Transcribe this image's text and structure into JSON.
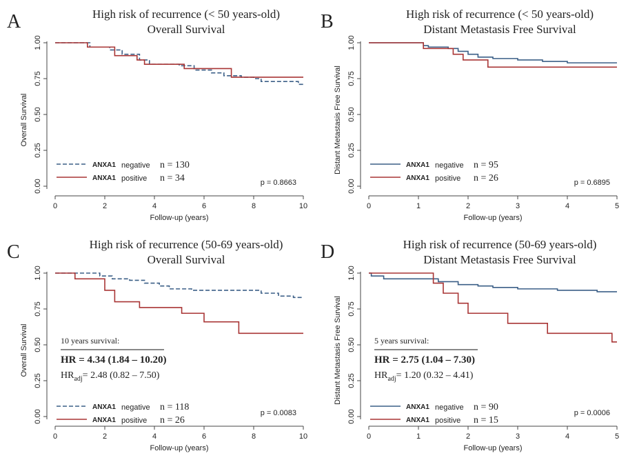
{
  "colors": {
    "negative": "#3a5e86",
    "positive": "#a83434",
    "axis": "#444444",
    "text": "#222222"
  },
  "chart_data": [
    {
      "panel": "A",
      "type": "line",
      "title": "High risk of recurrence (< 50 years-old)",
      "subtitle": "Overall Survival",
      "xlabel": "Follow-up (years)",
      "ylabel": "Overall Survival",
      "xlim": [
        0,
        10
      ],
      "ylim": [
        0,
        1
      ],
      "xticks": [
        "0",
        "2",
        "4",
        "6",
        "8",
        "10"
      ],
      "yticks": [
        "0.00",
        "0.25",
        "0.50",
        "0.75",
        "1.00"
      ],
      "pvalue": "p = 0.8663",
      "summary": null,
      "series": [
        {
          "name": "ANXA1",
          "group": "negative",
          "n_label": "n = 130",
          "style": "dashed",
          "steps": [
            [
              0,
              1.0
            ],
            [
              1.4,
              0.97
            ],
            [
              2.2,
              0.95
            ],
            [
              2.7,
              0.92
            ],
            [
              3.4,
              0.88
            ],
            [
              3.8,
              0.85
            ],
            [
              5.0,
              0.84
            ],
            [
              5.6,
              0.81
            ],
            [
              6.3,
              0.79
            ],
            [
              6.8,
              0.77
            ],
            [
              7.5,
              0.76
            ],
            [
              8.0,
              0.75
            ],
            [
              8.3,
              0.73
            ],
            [
              9.8,
              0.71
            ],
            [
              10.0,
              0.71
            ]
          ]
        },
        {
          "name": "ANXA1",
          "group": "positive",
          "n_label": "n = 34",
          "style": "solid",
          "steps": [
            [
              0,
              1.0
            ],
            [
              1.3,
              0.97
            ],
            [
              2.4,
              0.91
            ],
            [
              3.3,
              0.88
            ],
            [
              3.6,
              0.85
            ],
            [
              5.2,
              0.82
            ],
            [
              7.1,
              0.76
            ],
            [
              10.0,
              0.76
            ]
          ]
        }
      ]
    },
    {
      "panel": "B",
      "type": "line",
      "title": "High risk of recurrence (< 50 years-old)",
      "subtitle": "Distant Metastasis Free Survival",
      "xlabel": "Follow-up (years)",
      "ylabel": "Distant Metastasis Free Survival",
      "xlim": [
        0,
        5
      ],
      "ylim": [
        0,
        1
      ],
      "xticks": [
        "0",
        "1",
        "2",
        "3",
        "4",
        "5"
      ],
      "yticks": [
        "0.00",
        "0.25",
        "0.50",
        "0.75",
        "1.00"
      ],
      "pvalue": "p = 0.6895",
      "summary": null,
      "series": [
        {
          "name": "ANXA1",
          "group": "negative",
          "n_label": "n = 95",
          "style": "solid",
          "steps": [
            [
              0,
              1.0
            ],
            [
              1.1,
              0.98
            ],
            [
              1.2,
              0.97
            ],
            [
              1.6,
              0.96
            ],
            [
              1.8,
              0.94
            ],
            [
              2.0,
              0.92
            ],
            [
              2.2,
              0.9
            ],
            [
              2.5,
              0.89
            ],
            [
              3.0,
              0.88
            ],
            [
              3.5,
              0.87
            ],
            [
              4.0,
              0.86
            ],
            [
              5.0,
              0.86
            ]
          ]
        },
        {
          "name": "ANXA1",
          "group": "positive",
          "n_label": "n = 26",
          "style": "solid",
          "steps": [
            [
              0,
              1.0
            ],
            [
              1.1,
              0.96
            ],
            [
              1.7,
              0.92
            ],
            [
              1.9,
              0.88
            ],
            [
              2.4,
              0.83
            ],
            [
              5.0,
              0.83
            ]
          ]
        }
      ]
    },
    {
      "panel": "C",
      "type": "line",
      "title": "High risk of recurrence (50-69 years-old)",
      "subtitle": "Overall Survival",
      "xlabel": "Follow-up (years)",
      "ylabel": "Overall Survival",
      "xlim": [
        0,
        10
      ],
      "ylim": [
        0,
        1
      ],
      "xticks": [
        "0",
        "2",
        "4",
        "6",
        "8",
        "10"
      ],
      "yticks": [
        "0.00",
        "0.25",
        "0.50",
        "0.75",
        "1.00"
      ],
      "pvalue": "p = 0.0083",
      "summary": {
        "heading": "10 years survival:",
        "hr": "HR = 4.34 (1.84 – 10.20)",
        "hr_adj_prefix": "HR",
        "hr_adj_sub": "adj",
        "hr_adj_value": "= 2.48 (0.82 – 7.50)"
      },
      "series": [
        {
          "name": "ANXA1",
          "group": "negative",
          "n_label": "n = 118",
          "style": "dashed",
          "steps": [
            [
              0,
              1.0
            ],
            [
              1.8,
              0.98
            ],
            [
              2.3,
              0.96
            ],
            [
              3.0,
              0.95
            ],
            [
              3.6,
              0.93
            ],
            [
              4.2,
              0.91
            ],
            [
              4.6,
              0.89
            ],
            [
              5.5,
              0.88
            ],
            [
              8.3,
              0.86
            ],
            [
              9.0,
              0.84
            ],
            [
              9.6,
              0.83
            ],
            [
              10.0,
              0.83
            ]
          ]
        },
        {
          "name": "ANXA1",
          "group": "positive",
          "n_label": "n = 26",
          "style": "solid",
          "steps": [
            [
              0,
              1.0
            ],
            [
              0.8,
              0.96
            ],
            [
              2.0,
              0.88
            ],
            [
              2.4,
              0.8
            ],
            [
              3.4,
              0.76
            ],
            [
              5.1,
              0.72
            ],
            [
              6.0,
              0.66
            ],
            [
              7.4,
              0.58
            ],
            [
              10.0,
              0.58
            ]
          ]
        }
      ]
    },
    {
      "panel": "D",
      "type": "line",
      "title": "High risk of recurrence (50-69 years-old)",
      "subtitle": "Distant Metastasis Free Survival",
      "xlabel": "Follow-up (years)",
      "ylabel": "Distant Metastasis Free Survival",
      "xlim": [
        0,
        5
      ],
      "ylim": [
        0,
        1
      ],
      "xticks": [
        "0",
        "1",
        "2",
        "3",
        "4",
        "5"
      ],
      "yticks": [
        "0.00",
        "0.25",
        "0.50",
        "0.75",
        "1.00"
      ],
      "pvalue": "p = 0.0006",
      "summary": {
        "heading": "5 years survival:",
        "hr": "HR = 2.75 (1.04 – 7.30)",
        "hr_adj_prefix": "HR",
        "hr_adj_sub": "adj",
        "hr_adj_value": "= 1.20 (0.32 – 4.41)"
      },
      "series": [
        {
          "name": "ANXA1",
          "group": "negative",
          "n_label": "n = 90",
          "style": "solid",
          "steps": [
            [
              0,
              1.0
            ],
            [
              0.05,
              0.98
            ],
            [
              0.3,
              0.96
            ],
            [
              1.4,
              0.94
            ],
            [
              1.8,
              0.92
            ],
            [
              2.2,
              0.91
            ],
            [
              2.5,
              0.9
            ],
            [
              3.0,
              0.89
            ],
            [
              3.8,
              0.88
            ],
            [
              4.6,
              0.87
            ],
            [
              5.0,
              0.87
            ]
          ]
        },
        {
          "name": "ANXA1",
          "group": "positive",
          "n_label": "n = 15",
          "style": "solid",
          "steps": [
            [
              0,
              1.0
            ],
            [
              1.3,
              0.93
            ],
            [
              1.5,
              0.86
            ],
            [
              1.8,
              0.79
            ],
            [
              2.0,
              0.72
            ],
            [
              2.8,
              0.65
            ],
            [
              3.6,
              0.58
            ],
            [
              4.9,
              0.52
            ],
            [
              5.0,
              0.52
            ]
          ]
        }
      ]
    }
  ]
}
